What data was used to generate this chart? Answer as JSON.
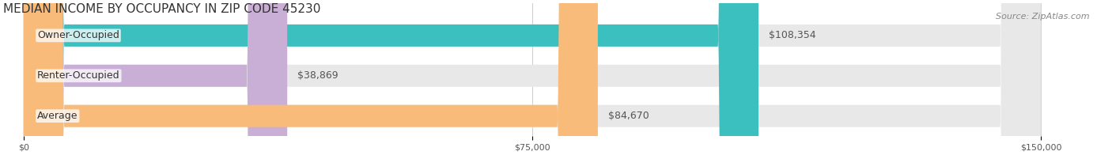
{
  "title": "MEDIAN INCOME BY OCCUPANCY IN ZIP CODE 45230",
  "source": "Source: ZipAtlas.com",
  "categories": [
    "Owner-Occupied",
    "Renter-Occupied",
    "Average"
  ],
  "values": [
    108354,
    38869,
    84670
  ],
  "bar_colors": [
    "#3bbfbf",
    "#c9aed6",
    "#f9bb7a"
  ],
  "bar_bg_color": "#e8e8e8",
  "value_labels": [
    "$108,354",
    "$38,869",
    "$84,670"
  ],
  "x_ticks": [
    0,
    75000,
    150000
  ],
  "x_tick_labels": [
    "$0",
    "$75,000",
    "$150,000"
  ],
  "x_max": 150000,
  "title_fontsize": 11,
  "source_fontsize": 8,
  "label_fontsize": 9,
  "value_fontsize": 9,
  "tick_fontsize": 8,
  "bg_color": "#ffffff",
  "bar_height": 0.55,
  "bar_label_color": "#ffffff",
  "value_text_color": "#555555"
}
